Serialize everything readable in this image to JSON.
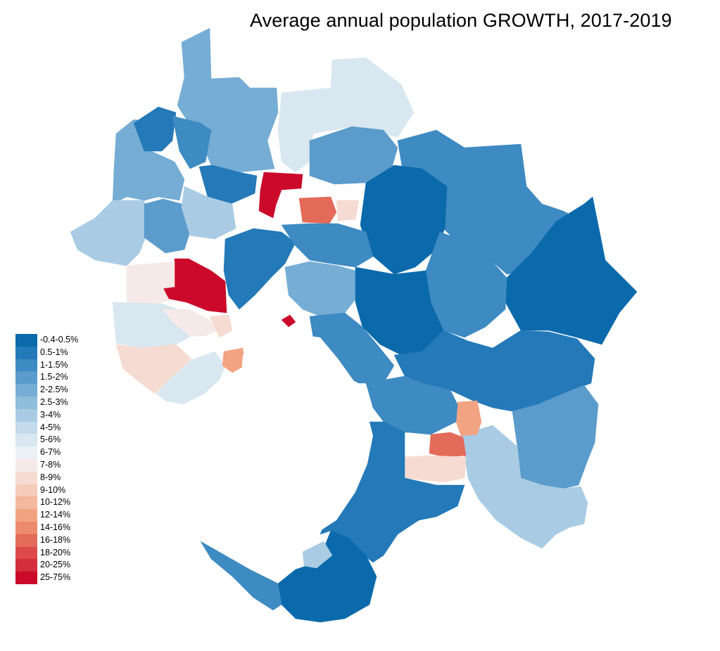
{
  "title": "Average annual population GROWTH, 2017-2019",
  "legend": [
    {
      "label": "-0.4-0.5%",
      "color": "#0b6aac"
    },
    {
      "label": "0.5-1%",
      "color": "#2479b8"
    },
    {
      "label": "1-1.5%",
      "color": "#3e8ac2"
    },
    {
      "label": "1.5-2%",
      "color": "#5b9ccc"
    },
    {
      "label": "2-2.5%",
      "color": "#75add5"
    },
    {
      "label": "2.5-3%",
      "color": "#8fbddc"
    },
    {
      "label": "3-4%",
      "color": "#a9cce4"
    },
    {
      "label": "4-5%",
      "color": "#c3dbeb"
    },
    {
      "label": "5-6%",
      "color": "#d9e7f1"
    },
    {
      "label": "6-7%",
      "color": "#ebf1f5"
    },
    {
      "label": "7-8%",
      "color": "#f5eae8"
    },
    {
      "label": "8-9%",
      "color": "#f6dbd2"
    },
    {
      "label": "9-10%",
      "color": "#f5cbba"
    },
    {
      "label": "10-12%",
      "color": "#f4b89f"
    },
    {
      "label": "12-14%",
      "color": "#f2a382"
    },
    {
      "label": "14-16%",
      "color": "#ec8a6c"
    },
    {
      "label": "16-18%",
      "color": "#e46a5a"
    },
    {
      "label": "18-20%",
      "color": "#dc4b4a"
    },
    {
      "label": "20-25%",
      "color": "#d42d3b"
    },
    {
      "label": "25-75%",
      "color": "#cb0a2b"
    }
  ],
  "colors": {
    "deep_blue": "#0b6aac",
    "dark_blue": "#2479b8",
    "mid_blue": "#3e8ac2",
    "blue": "#5b9ccc",
    "light_blue": "#75add5",
    "pale_blue": "#a9cce4",
    "very_pale_blue": "#d9e7f1",
    "near_white": "#f5eae8",
    "pale_red": "#f6dbd2",
    "salmon": "#f2a382",
    "red": "#e46a5a",
    "deep_red": "#cb0a2b"
  }
}
